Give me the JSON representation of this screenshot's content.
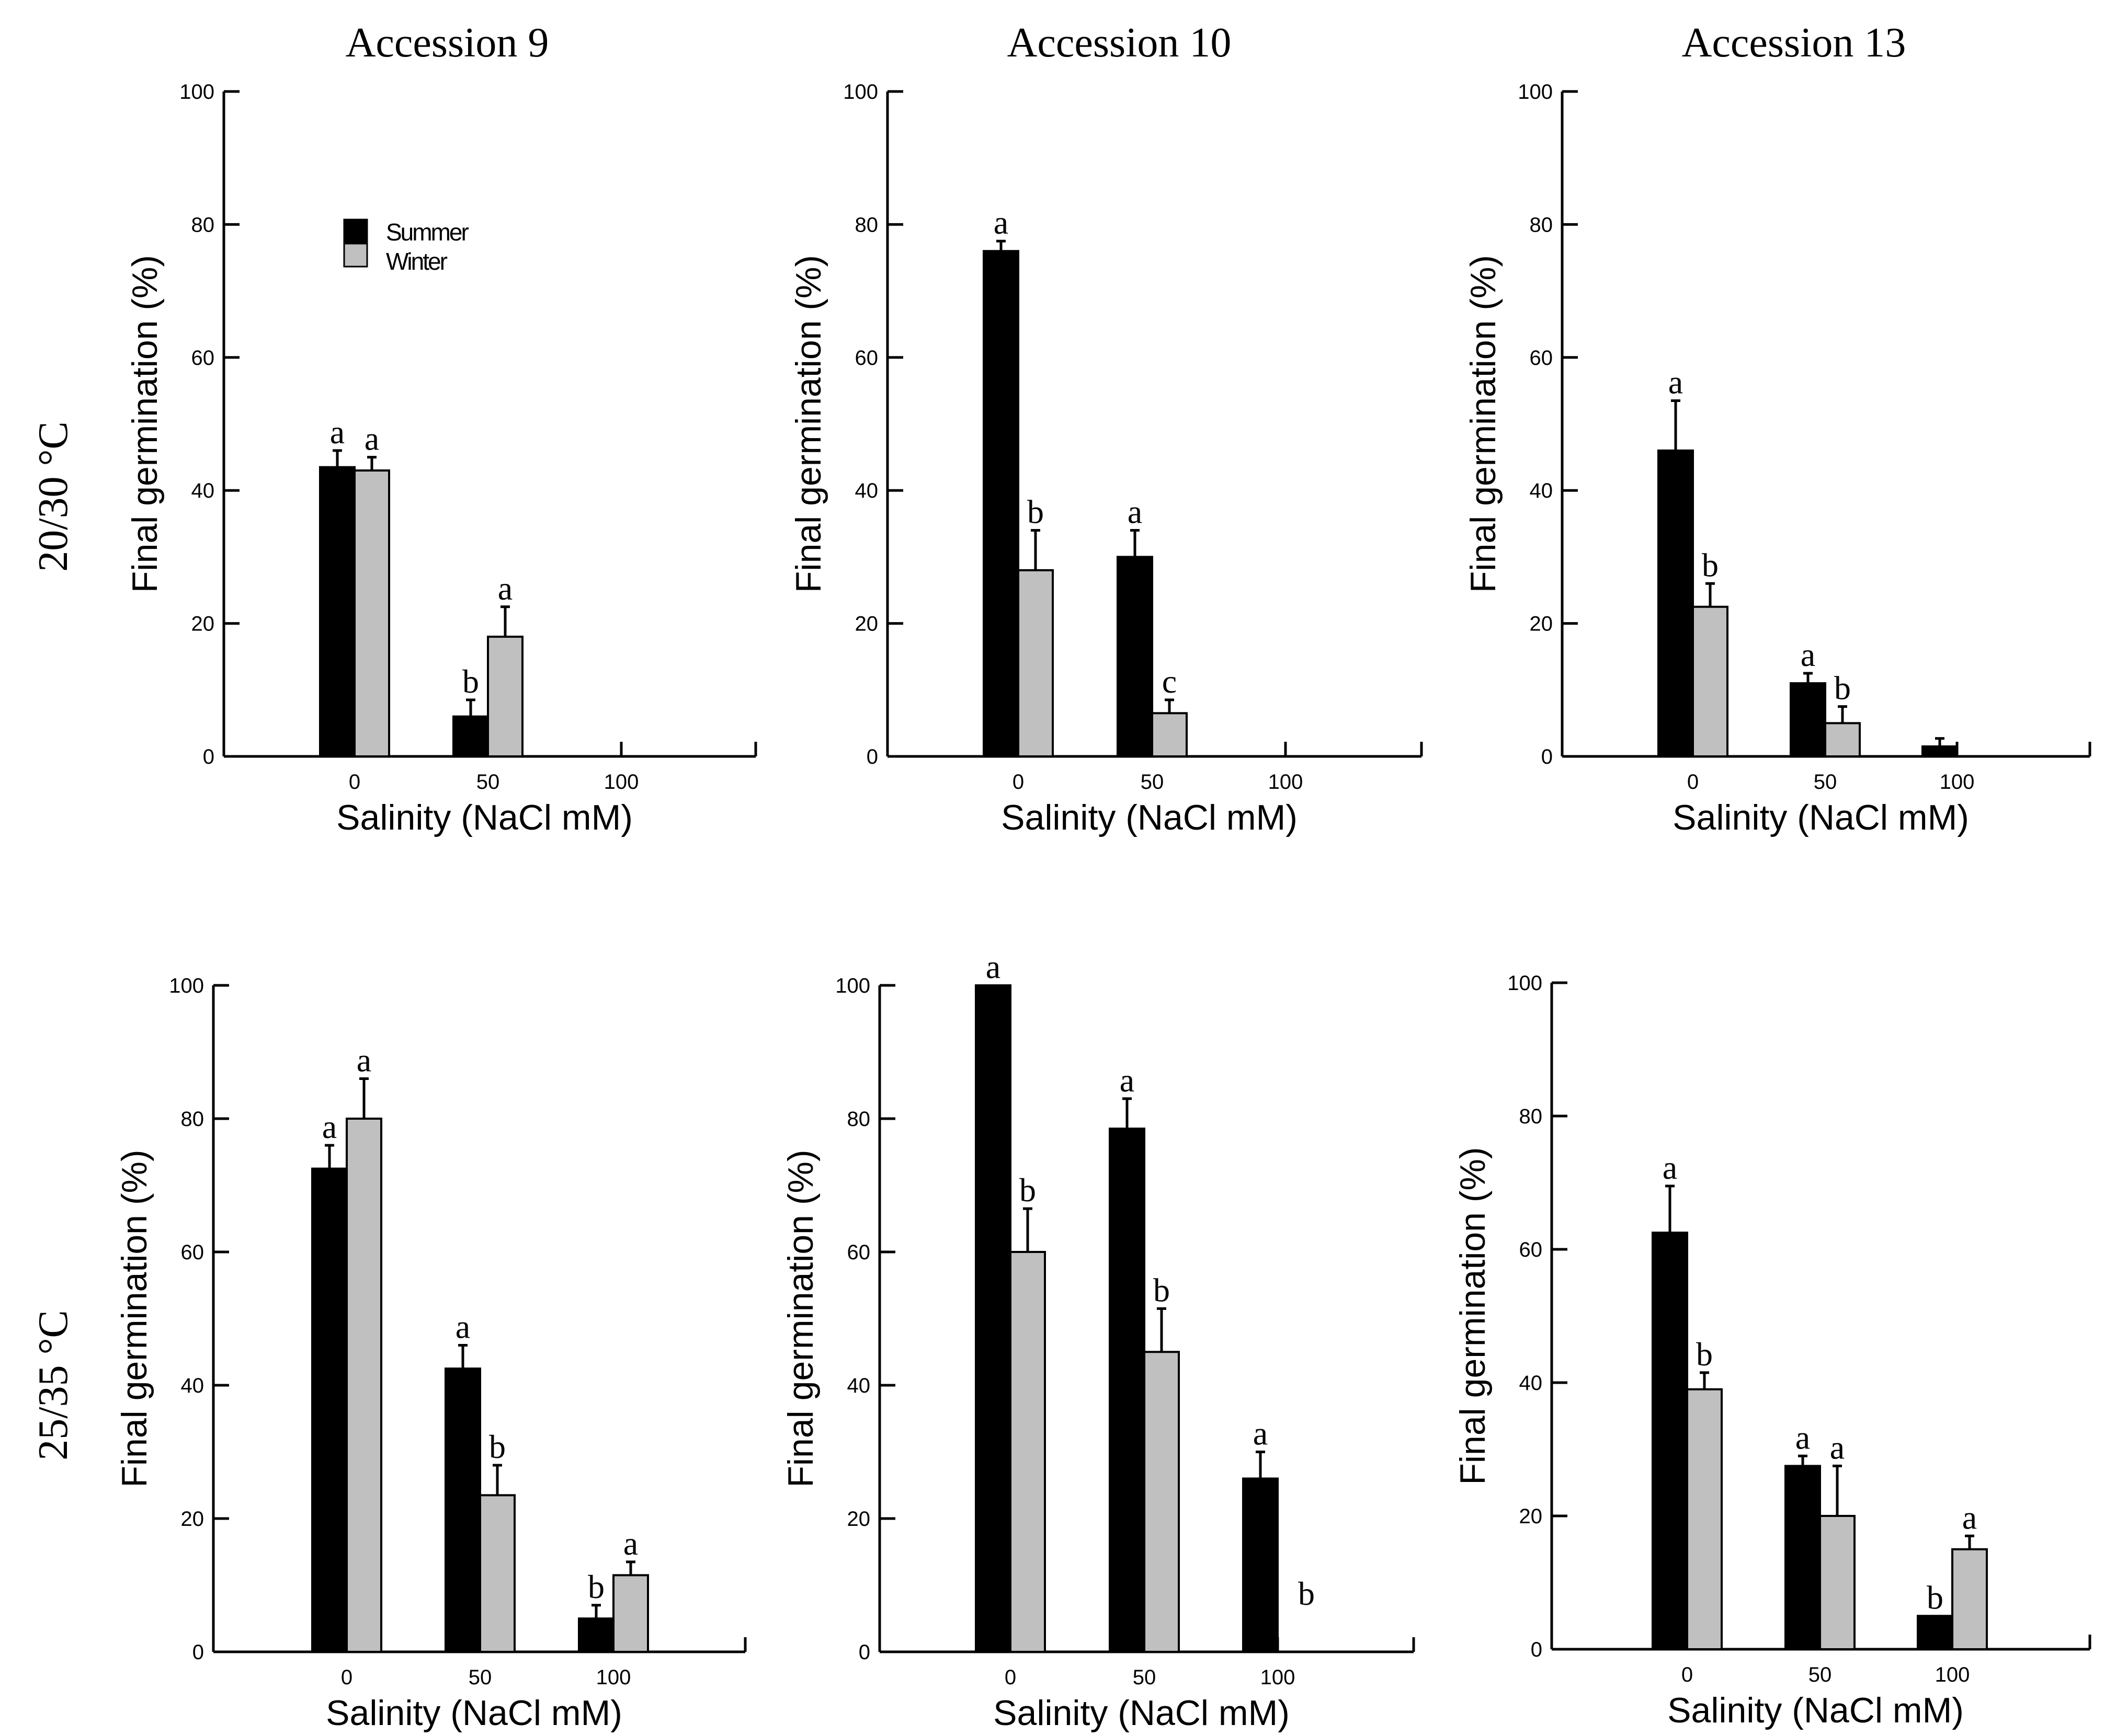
{
  "figure": {
    "column_titles": [
      "Accession 9",
      "Accession 10",
      "Accession 13"
    ],
    "row_labels": [
      "20/30 °C",
      "25/35 °C"
    ]
  },
  "colors": {
    "summer": "#000000",
    "winter": "#c0c0c0",
    "axis": "#000000"
  },
  "legend": {
    "summer": "Summer",
    "winter": "Winter"
  },
  "chart_data": [
    {
      "type": "bar",
      "title": "Accession 9",
      "row": "20/30 °C",
      "categories": [
        "0",
        "50",
        "100"
      ],
      "xlabel": "Salinity (NaCl mM)",
      "ylabel": "Final germination (%)",
      "ylim": [
        0,
        100
      ],
      "yticks": [
        "0",
        "20",
        "40",
        "60",
        "80",
        "100"
      ],
      "legend_shown": true,
      "legend_position": "upper-left",
      "series": [
        {
          "name": "Summer",
          "values": [
            43.5,
            6,
            0
          ],
          "errors": [
            2.5,
            2.5,
            0
          ],
          "labels": [
            "a",
            "b",
            ""
          ]
        },
        {
          "name": "Winter",
          "values": [
            43,
            18,
            0
          ],
          "errors": [
            2,
            4.5,
            0
          ],
          "labels": [
            "a",
            "a",
            ""
          ]
        }
      ]
    },
    {
      "type": "bar",
      "title": "Accession 10",
      "row": "20/30 °C",
      "categories": [
        "0",
        "50",
        "100"
      ],
      "xlabel": "Salinity (NaCl mM)",
      "ylabel": "Final germination (%)",
      "ylim": [
        0,
        100
      ],
      "yticks": [
        "0",
        "20",
        "40",
        "60",
        "80",
        "100"
      ],
      "legend_shown": false,
      "series": [
        {
          "name": "Summer",
          "values": [
            76,
            30,
            0
          ],
          "errors": [
            1.5,
            4,
            0
          ],
          "labels": [
            "a",
            "a",
            ""
          ]
        },
        {
          "name": "Winter",
          "values": [
            28,
            6.5,
            0
          ],
          "errors": [
            6,
            2,
            0
          ],
          "labels": [
            "b",
            "c",
            ""
          ]
        }
      ]
    },
    {
      "type": "bar",
      "title": "Accession 13",
      "row": "20/30 °C",
      "categories": [
        "0",
        "50",
        "100"
      ],
      "xlabel": "Salinity (NaCl mM)",
      "ylabel": "Final germination (%)",
      "ylim": [
        0,
        100
      ],
      "yticks": [
        "0",
        "20",
        "40",
        "60",
        "80",
        "100"
      ],
      "legend_shown": false,
      "series": [
        {
          "name": "Summer",
          "values": [
            46,
            11,
            1.5
          ],
          "errors": [
            7.5,
            1.5,
            1.2
          ],
          "labels": [
            "a",
            "a",
            ""
          ]
        },
        {
          "name": "Winter",
          "values": [
            22.5,
            5,
            0
          ],
          "errors": [
            3.5,
            2.5,
            0
          ],
          "labels": [
            "b",
            "b",
            ""
          ]
        }
      ]
    },
    {
      "type": "bar",
      "title": "Accession 9",
      "row": "25/35 °C",
      "categories": [
        "0",
        "50",
        "100"
      ],
      "xlabel": "Salinity (NaCl mM)",
      "ylabel": "Final germination (%)",
      "ylim": [
        0,
        100
      ],
      "yticks": [
        "0",
        "20",
        "40",
        "60",
        "80",
        "100"
      ],
      "legend_shown": false,
      "series": [
        {
          "name": "Summer",
          "values": [
            72.5,
            42.5,
            5
          ],
          "errors": [
            3.5,
            3.5,
            2
          ],
          "labels": [
            "a",
            "a",
            "b"
          ]
        },
        {
          "name": "Winter",
          "values": [
            80,
            23.5,
            11.5
          ],
          "errors": [
            6,
            4.5,
            2
          ],
          "labels": [
            "a",
            "b",
            "a"
          ]
        }
      ]
    },
    {
      "type": "bar",
      "title": "Accession 10",
      "row": "25/35 °C",
      "categories": [
        "0",
        "50",
        "100"
      ],
      "xlabel": "Salinity (NaCl mM)",
      "ylabel": "Final germination (%)",
      "ylim": [
        0,
        100
      ],
      "yticks": [
        "0",
        "20",
        "40",
        "60",
        "80",
        "100"
      ],
      "legend_shown": false,
      "series": [
        {
          "name": "Summer",
          "values": [
            100,
            78.5,
            26
          ],
          "errors": [
            0,
            4.5,
            4
          ],
          "labels": [
            "a",
            "a",
            "a"
          ]
        },
        {
          "name": "Winter",
          "values": [
            60,
            45,
            0
          ],
          "errors": [
            6.5,
            6.5,
            0
          ],
          "labels": [
            "b",
            "b",
            "b"
          ]
        }
      ]
    },
    {
      "type": "bar",
      "title": "Accession 13",
      "row": "25/35 °C",
      "categories": [
        "0",
        "50",
        "100"
      ],
      "xlabel": "Salinity (NaCl mM)",
      "ylabel": "Final germination (%)",
      "ylim": [
        0,
        100
      ],
      "yticks": [
        "0",
        "20",
        "40",
        "60",
        "80",
        "100"
      ],
      "legend_shown": false,
      "series": [
        {
          "name": "Summer",
          "values": [
            62.5,
            27.5,
            5
          ],
          "errors": [
            7,
            1.5,
            0
          ],
          "labels": [
            "a",
            "a",
            "b"
          ]
        },
        {
          "name": "Winter",
          "values": [
            39,
            20,
            15
          ],
          "errors": [
            2.5,
            7.5,
            2
          ],
          "labels": [
            "b",
            "a",
            "a"
          ]
        }
      ]
    }
  ]
}
